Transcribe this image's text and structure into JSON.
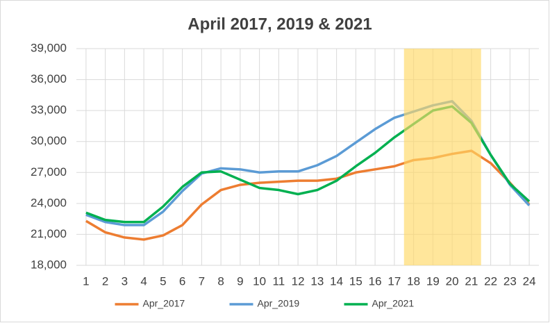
{
  "chart_data": {
    "type": "line",
    "title": "April 2017, 2019 & 2021",
    "categories": [
      "1",
      "2",
      "3",
      "4",
      "5",
      "6",
      "7",
      "8",
      "9",
      "10",
      "11",
      "12",
      "13",
      "14",
      "15",
      "16",
      "17",
      "18",
      "19",
      "20",
      "21",
      "22",
      "23",
      "24"
    ],
    "series": [
      {
        "name": "Apr_2017",
        "color": "#ed7d31",
        "values": [
          22300,
          21200,
          20700,
          20500,
          20900,
          21900,
          23900,
          25300,
          25800,
          26000,
          26100,
          26200,
          26200,
          26400,
          27000,
          27300,
          27600,
          28200,
          28400,
          28800,
          29100,
          27900,
          26000,
          23900
        ]
      },
      {
        "name": "Apr_2019",
        "color": "#5b9bd5",
        "values": [
          22900,
          22200,
          21900,
          21900,
          23200,
          25200,
          26900,
          27400,
          27300,
          27000,
          27100,
          27100,
          27700,
          28600,
          29900,
          31200,
          32300,
          32900,
          33500,
          33900,
          32000,
          28700,
          25800,
          23800
        ]
      },
      {
        "name": "Apr_2021",
        "color": "#00b050",
        "values": [
          23100,
          22400,
          22200,
          22200,
          23700,
          25600,
          27000,
          27100,
          26300,
          25500,
          25300,
          24900,
          25300,
          26200,
          27600,
          28900,
          30400,
          31700,
          33000,
          33400,
          31800,
          28700,
          25900,
          24200
        ]
      }
    ],
    "ylim": [
      18000,
      39000
    ],
    "yticks": [
      {
        "value": 18000,
        "label": "18,000"
      },
      {
        "value": 21000,
        "label": "21,000"
      },
      {
        "value": 24000,
        "label": "24,000"
      },
      {
        "value": 27000,
        "label": "27,000"
      },
      {
        "value": 30000,
        "label": "30,000"
      },
      {
        "value": 33000,
        "label": "33,000"
      },
      {
        "value": 36000,
        "label": "36,000"
      },
      {
        "value": 39000,
        "label": "39,000"
      }
    ],
    "grid": true,
    "legend": "bottom",
    "highlight": {
      "from": "18",
      "to": "21",
      "color": "#ffd966"
    }
  }
}
